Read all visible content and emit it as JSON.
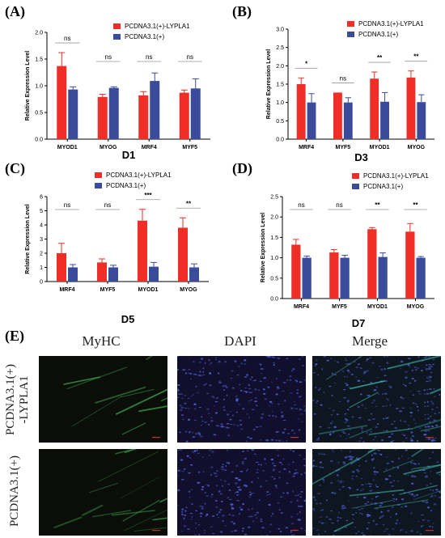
{
  "panels": {
    "A": {
      "letter": "(A)"
    },
    "B": {
      "letter": "(B)"
    },
    "C": {
      "letter": "(C)"
    },
    "D": {
      "letter": "(D)"
    },
    "E": {
      "letter": "(E)"
    }
  },
  "colors": {
    "lypla1": "#ee2e27",
    "control": "#3b4b9b"
  },
  "chart_data": [
    {
      "id": "A",
      "type": "bar",
      "title": "",
      "xlabel": "D1",
      "ylabel": "Relative Expression Level",
      "ylim": [
        0,
        2.0
      ],
      "yticks": [
        "0.0",
        "0.5",
        "1.0",
        "1.5",
        "2.0"
      ],
      "ytick_values": [
        0,
        0.5,
        1.0,
        1.5,
        2.0
      ],
      "categories": [
        "MYOD1",
        "MYOG",
        "MRF4",
        "MYF5"
      ],
      "series": [
        {
          "name": "PCDNA3.1(+)-LYPLA1",
          "values": [
            1.37,
            0.79,
            0.82,
            0.87
          ],
          "errors": [
            0.25,
            0.05,
            0.07,
            0.05
          ]
        },
        {
          "name": "PCDNA3.1(+)",
          "values": [
            0.93,
            0.96,
            1.09,
            0.95
          ],
          "errors": [
            0.05,
            0.02,
            0.15,
            0.18
          ]
        }
      ],
      "significance": [
        "ns",
        "ns",
        "ns",
        "ns"
      ],
      "legend_position": "top-right"
    },
    {
      "id": "B",
      "type": "bar",
      "title": "",
      "xlabel": "D3",
      "ylabel": "Relative Expression Level",
      "ylim": [
        0,
        3.0
      ],
      "yticks": [
        "0.0",
        "0.5",
        "1.0",
        "1.5",
        "2.0",
        "2.5",
        "3.0"
      ],
      "ytick_values": [
        0,
        0.5,
        1.0,
        1.5,
        2.0,
        2.5,
        3.0
      ],
      "categories": [
        "MRF4",
        "MYF5",
        "MYOD1",
        "MYOG"
      ],
      "series": [
        {
          "name": "PCDNA3.1(+)-LYPLA1",
          "values": [
            1.5,
            1.27,
            1.65,
            1.68
          ],
          "errors": [
            0.17,
            0.0,
            0.18,
            0.18
          ]
        },
        {
          "name": "PCDNA3.1(+)",
          "values": [
            1.0,
            1.0,
            1.02,
            1.01
          ],
          "errors": [
            0.24,
            0.13,
            0.25,
            0.2
          ]
        }
      ],
      "significance": [
        "*",
        "ns",
        "**",
        "**"
      ],
      "legend_position": "top-right"
    },
    {
      "id": "C",
      "type": "bar",
      "title": "",
      "xlabel": "D5",
      "ylabel": "Relative Expression Level",
      "ylim": [
        0,
        6
      ],
      "yticks": [
        "0",
        "1",
        "2",
        "3",
        "4",
        "5",
        "6"
      ],
      "ytick_values": [
        0,
        1,
        2,
        3,
        4,
        5,
        6
      ],
      "categories": [
        "MRF4",
        "MYF5",
        "MYOD1",
        "MYOG"
      ],
      "series": [
        {
          "name": "PCDNA3.1(+)-LYPLA1",
          "values": [
            2.0,
            1.35,
            4.3,
            3.8
          ],
          "errors": [
            0.7,
            0.25,
            0.8,
            0.7
          ]
        },
        {
          "name": "PCDNA3.1(+)",
          "values": [
            1.0,
            1.0,
            1.05,
            1.0
          ],
          "errors": [
            0.2,
            0.15,
            0.3,
            0.25
          ]
        }
      ],
      "significance": [
        "ns",
        "ns",
        "***",
        "**"
      ],
      "legend_position": "top-right"
    },
    {
      "id": "D",
      "type": "bar",
      "title": "",
      "xlabel": "D7",
      "ylabel": "Relative Expression Level",
      "ylim": [
        0,
        2.5
      ],
      "yticks": [
        "0.0",
        "0.5",
        "1.0",
        "1.5",
        "2.0",
        "2.5"
      ],
      "ytick_values": [
        0,
        0.5,
        1.0,
        1.5,
        2.0,
        2.5
      ],
      "categories": [
        "MRF4",
        "MYF5",
        "MYOD1",
        "MYOG"
      ],
      "series": [
        {
          "name": "PCDNA3.1(+)-LYPLA1",
          "values": [
            1.32,
            1.13,
            1.7,
            1.64
          ],
          "errors": [
            0.13,
            0.07,
            0.04,
            0.2
          ]
        },
        {
          "name": "PCDNA3.1(+)",
          "values": [
            1.0,
            1.0,
            1.02,
            1.0
          ],
          "errors": [
            0.04,
            0.06,
            0.1,
            0.03
          ]
        }
      ],
      "significance": [
        "ns",
        "ns",
        "**",
        "**"
      ],
      "legend_position": "top-right"
    }
  ],
  "microscopy": {
    "columns": [
      "MyHC",
      "DAPI",
      "Merge"
    ],
    "rows": [
      "PCDNA3.1(+)\n-LYPLA1",
      "PCDNA3.1(+)"
    ]
  }
}
